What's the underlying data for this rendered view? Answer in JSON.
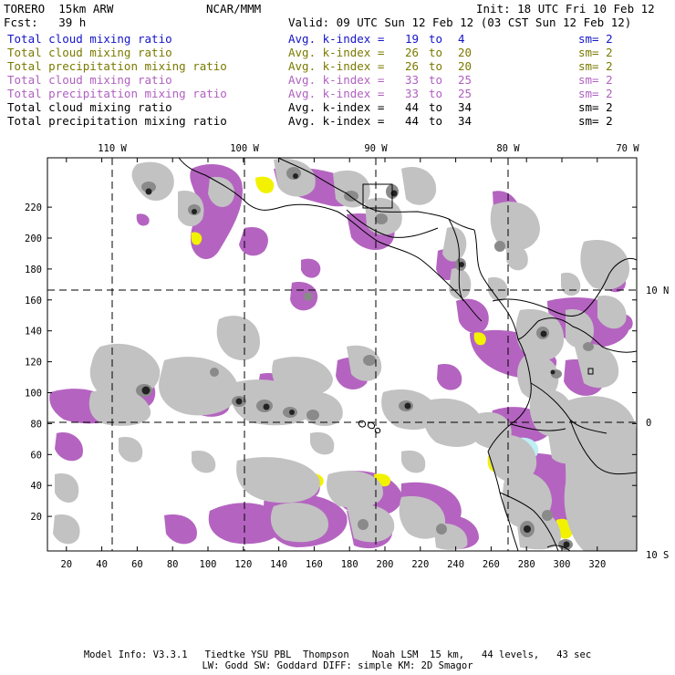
{
  "header": {
    "model": "TORERO  15km ARW",
    "org": "NCAR/MMM",
    "init": "Init: 18 UTC Fri 10 Feb 12",
    "fcst": "Fcst:   39 h",
    "valid": "Valid: 09 UTC Sun 12 Feb 12 (03 CST Sun 12 Feb 12)"
  },
  "legend": [
    {
      "field": "Total cloud mixing ratio",
      "avg": "Avg. k-index =",
      "k1": "19",
      "to": "to",
      "k2": "4",
      "sm": "sm= 2",
      "color": "#1414c8"
    },
    {
      "field": "Total cloud mixing ratio",
      "avg": "Avg. k-index =",
      "k1": "26",
      "to": "to",
      "k2": "20",
      "sm": "sm= 2",
      "color": "#7a7a00"
    },
    {
      "field": "Total precipitation mixing ratio",
      "avg": "Avg. k-index =",
      "k1": "26",
      "to": "to",
      "k2": "20",
      "sm": "sm= 2",
      "color": "#7a7a00"
    },
    {
      "field": "Total cloud mixing ratio",
      "avg": "Avg. k-index =",
      "k1": "33",
      "to": "to",
      "k2": "25",
      "sm": "sm= 2",
      "color": "#b060c0"
    },
    {
      "field": "Total precipitation mixing ratio",
      "avg": "Avg. k-index =",
      "k1": "33",
      "to": "to",
      "k2": "25",
      "sm": "sm= 2",
      "color": "#b060c0"
    },
    {
      "field": "Total cloud mixing ratio",
      "avg": "Avg. k-index =",
      "k1": "44",
      "to": "to",
      "k2": "34",
      "sm": "sm= 2",
      "color": "#000000"
    },
    {
      "field": "Total precipitation mixing ratio",
      "avg": "Avg. k-index =",
      "k1": "44",
      "to": "to",
      "k2": "34",
      "sm": "sm= 2",
      "color": "#000000"
    }
  ],
  "map": {
    "top_lon_labels": [
      "110 W",
      "100 W",
      "90 W",
      "80 W",
      "70 W"
    ],
    "right_lat_labels": [
      "10 N",
      "0",
      "10 S"
    ],
    "x_ticks": [
      "20",
      "40",
      "60",
      "80",
      "100",
      "120",
      "140",
      "160",
      "180",
      "200",
      "220",
      "240",
      "260",
      "280",
      "300",
      "320"
    ],
    "y_ticks": [
      "220",
      "200",
      "180",
      "160",
      "140",
      "120",
      "100",
      "80",
      "60",
      "40",
      "20"
    ],
    "colors": {
      "light_gray": "#c8c8c8",
      "mid_gray": "#a0a0a0",
      "dark_gray": "#5a5a5a",
      "yellow": "#f2f200",
      "purple": "#b464c0",
      "cyan": "#bfeef5",
      "coast": "#000000"
    }
  },
  "footer": {
    "line1": "Model Info: V3.3.1   Tiedtke YSU PBL  Thompson    Noah LSM  15 km,   44 levels,   43 sec",
    "line2": "LW: Godd SW: Goddard DIFF: simple KM: 2D Smagor"
  }
}
